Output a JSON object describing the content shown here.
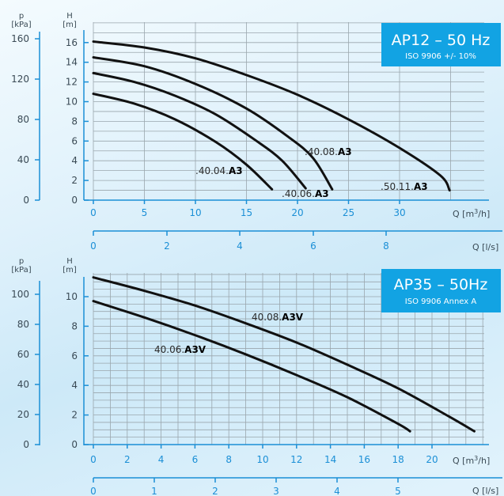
{
  "chart_data": [
    {
      "type": "line",
      "title": "AP12 – 50 Hz",
      "subtitle": "ISO 9906 +/- 10%",
      "colors": {
        "axis": "#1b8fd6",
        "title_box": "#12a3e3",
        "curve": "#111111",
        "grid": "#9aa6ad"
      },
      "grid": true,
      "xlabel": "Q [m3/h]",
      "x2label": "Q [l/s]",
      "ylabel": "H [m]",
      "y2label": "p [kPa]",
      "xlim": [
        0,
        40
      ],
      "ylim": [
        0,
        17
      ],
      "x_ticks": [
        "0",
        "5",
        "10",
        "15",
        "20",
        "25",
        "30"
      ],
      "x2_ticks": [
        "0",
        "2",
        "4",
        "6",
        "8"
      ],
      "y_ticks": [
        "0",
        "2",
        "4",
        "6",
        "8",
        "10",
        "12",
        "14",
        "16"
      ],
      "y2_ticks": [
        "0",
        "40",
        "80",
        "120",
        "160"
      ],
      "series": [
        {
          "name_plain": ".40.04.",
          "name_bold": "A3",
          "x": [
            0,
            4,
            8,
            12,
            15,
            17.5
          ],
          "y": [
            10.8,
            9.8,
            8.2,
            5.9,
            3.6,
            1.1
          ]
        },
        {
          "name_plain": ".40.06.",
          "name_bold": "A3",
          "x": [
            0,
            4,
            8,
            12,
            16,
            18.5,
            20.8
          ],
          "y": [
            12.9,
            12.0,
            10.6,
            8.7,
            6.0,
            4.0,
            1.2
          ]
        },
        {
          "name_plain": ".40.08.",
          "name_bold": "A3",
          "x": [
            0,
            5,
            10,
            15,
            19,
            21.5,
            23.4
          ],
          "y": [
            14.5,
            13.6,
            11.8,
            9.3,
            6.5,
            4.3,
            1.1
          ]
        },
        {
          "name_plain": ".50.11.",
          "name_bold": "A3",
          "x": [
            0,
            5,
            10,
            15,
            20,
            25,
            30,
            34,
            34.9
          ],
          "y": [
            16.1,
            15.5,
            14.4,
            12.7,
            10.7,
            8.2,
            5.3,
            2.5,
            1.0
          ]
        }
      ]
    },
    {
      "type": "line",
      "title": "AP35 – 50Hz",
      "subtitle": "ISO 9906 Annex A",
      "colors": {
        "axis": "#1b8fd6",
        "title_box": "#12a3e3",
        "curve": "#111111",
        "grid": "#9aa6ad"
      },
      "grid": true,
      "xlabel": "Q [m3/h]",
      "x2label": "Q [l/s]",
      "ylabel": "H [m]",
      "y2label": "p [kPa]",
      "xlim": [
        0,
        24
      ],
      "ylim": [
        0,
        12
      ],
      "x_ticks": [
        "0",
        "2",
        "4",
        "6",
        "8",
        "10",
        "12",
        "14",
        "16",
        "18",
        "20"
      ],
      "x2_ticks": [
        "0",
        "1",
        "2",
        "3",
        "4",
        "5"
      ],
      "y_ticks": [
        "0",
        "2",
        "4",
        "6",
        "8",
        "10"
      ],
      "y2_ticks": [
        "0",
        "20",
        "40",
        "60",
        "80",
        "100"
      ],
      "series": [
        {
          "name_plain": "40.06.",
          "name_bold": "A3V",
          "x": [
            0,
            3,
            6,
            9,
            12,
            15,
            18,
            18.7
          ],
          "y": [
            9.7,
            8.6,
            7.4,
            6.1,
            4.7,
            3.2,
            1.4,
            0.9
          ]
        },
        {
          "name_plain": "40.08.",
          "name_bold": "A3V",
          "x": [
            0,
            3,
            6,
            9,
            12,
            15,
            18,
            21,
            22.5
          ],
          "y": [
            11.3,
            10.4,
            9.4,
            8.2,
            6.9,
            5.4,
            3.8,
            1.9,
            0.9
          ]
        }
      ]
    }
  ]
}
